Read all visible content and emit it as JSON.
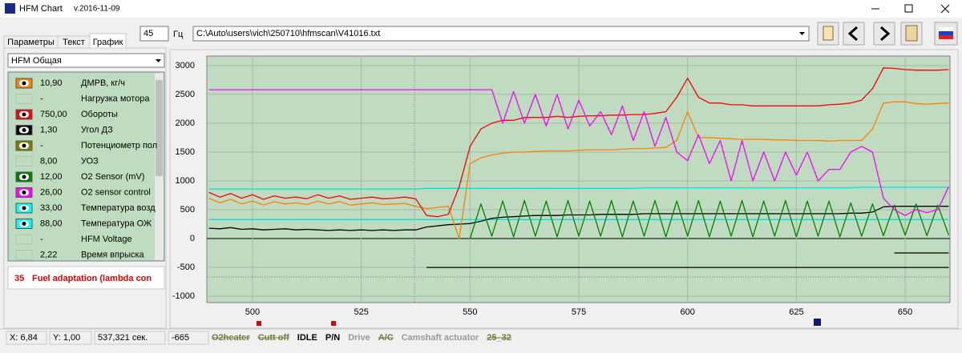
{
  "window": {
    "title": "HFM Chart",
    "version": "v.2016-11-09"
  },
  "toolbar": {
    "rate": "45",
    "rate_unit": "Гц",
    "file": "C:\\Auto\\users\\vich\\250710\\hfmscan\\V41016.txt"
  },
  "tabs": [
    "Параметры",
    "Текст",
    "График"
  ],
  "preset": "HFM Общая",
  "params": [
    {
      "value": "10,90",
      "name": "ДМРВ, кг/ч",
      "color": "#ff8000"
    },
    {
      "value": "-",
      "name": "Нагрузка мотора"
    },
    {
      "value": "750,00",
      "name": "Обороты",
      "color": "#ff0000"
    },
    {
      "value": "1,30",
      "name": "Угол ДЗ",
      "color": "#000000"
    },
    {
      "value": "-",
      "name": "Потенциометр пол",
      "color": "#808000"
    },
    {
      "value": "8,00",
      "name": "УОЗ"
    },
    {
      "value": "12,00",
      "name": "O2 Sensor (mV)",
      "color": "#008000"
    },
    {
      "value": "26,00",
      "name": "O2 sensor control",
      "color": "#ff00ff"
    },
    {
      "value": "33,00",
      "name": "Температура возд",
      "color": "#00ffff"
    },
    {
      "value": "88,00",
      "name": "Температура ОЖ",
      "color": "#00ffff"
    },
    {
      "value": "-",
      "name": "HFM Voltage"
    },
    {
      "value": "2,22",
      "name": "Время впрыска"
    }
  ],
  "message": {
    "number": "35",
    "text": "Fuel adaptation (lambda con"
  },
  "status": {
    "x": "X: 6,84",
    "y": "Y: 1,00",
    "time": "537,321 сек.",
    "cursor": "-665",
    "flags": [
      {
        "label": "O2heater",
        "state": "off"
      },
      {
        "label": "Cutt off",
        "state": "off"
      },
      {
        "label": "IDLE",
        "state": "on"
      },
      {
        "label": "P/N",
        "state": "on"
      },
      {
        "label": "Drive",
        "state": "inactive"
      },
      {
        "label": "A/C",
        "state": "off"
      },
      {
        "label": "Camshaft actuator",
        "state": "inactive"
      },
      {
        "label": "25_32",
        "state": "off"
      }
    ]
  },
  "chart_data": {
    "type": "line",
    "background": "#c0dcc0",
    "grid": true,
    "xlim": [
      489.5,
      660.3
    ],
    "ylim": [
      -1110,
      3165
    ],
    "xticks": [
      500,
      525,
      550,
      575,
      600,
      625,
      650
    ],
    "yticks": [
      3000,
      2500,
      2000,
      1500,
      1000,
      500,
      0,
      -500,
      -1000
    ],
    "x": [
      490,
      492.5,
      495,
      497.5,
      500,
      502.5,
      505,
      507.5,
      510,
      512.5,
      515,
      517.5,
      520,
      522.5,
      525,
      527.5,
      530,
      532.5,
      535,
      537.5,
      540,
      542.5,
      545,
      547.5,
      550,
      552.5,
      555,
      557.5,
      560,
      562.5,
      565,
      567.5,
      570,
      572.5,
      575,
      577.5,
      580,
      582.5,
      585,
      587.5,
      590,
      592.5,
      595,
      597.5,
      600,
      602.5,
      605,
      607.5,
      610,
      612.5,
      615,
      617.5,
      620,
      622.5,
      625,
      627.5,
      630,
      632.5,
      635,
      637.5,
      640,
      642.5,
      645,
      647.5,
      650,
      652.5,
      655,
      657.5,
      660
    ],
    "series": [
      {
        "color": "#00e0e0",
        "values": [
          860,
          860,
          860,
          860,
          860,
          860,
          860,
          860,
          860,
          860,
          860,
          860,
          860,
          860,
          860,
          860,
          860,
          860,
          860,
          860,
          870,
          870,
          870,
          870,
          870,
          870,
          870,
          870,
          870,
          870,
          870,
          870,
          870,
          870,
          870,
          870,
          870,
          870,
          870,
          870,
          880,
          880,
          880,
          880,
          880,
          880,
          880,
          880,
          880,
          880,
          880,
          880,
          880,
          880,
          880,
          880,
          880,
          880,
          880,
          880,
          890,
          890,
          890,
          890,
          890,
          890,
          890,
          890,
          890
        ]
      },
      {
        "color": "#00e0e0",
        "values": [
          330,
          330,
          330,
          330,
          330,
          330,
          330,
          330,
          330,
          330,
          330,
          330,
          330,
          330,
          330,
          330,
          330,
          330,
          330,
          330,
          330,
          330,
          330,
          330,
          330,
          330,
          330,
          330,
          330,
          330,
          330,
          330,
          330,
          330,
          330,
          330,
          330,
          330,
          330,
          330,
          330,
          330,
          330,
          330,
          330,
          330,
          330,
          330,
          330,
          330,
          330,
          330,
          330,
          330,
          330,
          330,
          330,
          330,
          330,
          330,
          330,
          330,
          330,
          330,
          330,
          330,
          330,
          330,
          330
        ]
      },
      {
        "color": "#000000",
        "values": [
          null,
          null,
          null,
          null,
          null,
          null,
          null,
          null,
          null,
          null,
          null,
          null,
          null,
          null,
          null,
          null,
          null,
          null,
          null,
          null,
          -500,
          -500,
          -500,
          -500,
          -500,
          -500,
          -500,
          -500,
          -500,
          -500,
          -500,
          -500,
          -500,
          -500,
          -500,
          -500,
          -500,
          -500,
          -500,
          -500,
          -500,
          -500,
          -500,
          -500,
          -500,
          -500,
          -500,
          -500,
          -500,
          -500,
          -500,
          -500,
          -500,
          -500,
          -500,
          -500,
          -500,
          -500,
          -500,
          -500,
          -500,
          -500,
          -500,
          -500,
          -500,
          -500,
          -500,
          -500,
          -500
        ]
      },
      {
        "color": "#000000",
        "values": [
          null,
          null,
          null,
          null,
          null,
          null,
          null,
          null,
          null,
          null,
          null,
          null,
          null,
          null,
          null,
          null,
          null,
          null,
          null,
          null,
          null,
          null,
          null,
          null,
          null,
          null,
          null,
          null,
          null,
          null,
          null,
          null,
          null,
          null,
          null,
          null,
          null,
          null,
          null,
          null,
          null,
          null,
          null,
          null,
          null,
          null,
          null,
          null,
          null,
          null,
          null,
          null,
          null,
          null,
          null,
          null,
          null,
          null,
          null,
          null,
          null,
          null,
          null,
          -250,
          -250,
          -250,
          -250,
          -250,
          -250
        ]
      },
      {
        "color": "#000000",
        "values": [
          180,
          170,
          190,
          160,
          170,
          150,
          160,
          170,
          150,
          160,
          150,
          140,
          150,
          140,
          150,
          140,
          150,
          140,
          150,
          150,
          200,
          220,
          240,
          250,
          260,
          300,
          350,
          370,
          380,
          390,
          400,
          400,
          400,
          410,
          410,
          410,
          420,
          420,
          420,
          420,
          430,
          430,
          430,
          430,
          430,
          430,
          430,
          430,
          430,
          430,
          430,
          430,
          430,
          430,
          430,
          430,
          430,
          430,
          430,
          440,
          440,
          460,
          550,
          560,
          560,
          560,
          560,
          560,
          560
        ]
      },
      {
        "color": "#008000",
        "values": [
          null,
          null,
          null,
          null,
          null,
          null,
          null,
          null,
          null,
          null,
          null,
          null,
          null,
          null,
          null,
          null,
          null,
          null,
          null,
          null,
          null,
          null,
          null,
          null,
          0,
          600,
          40,
          650,
          30,
          660,
          40,
          650,
          30,
          660,
          40,
          650,
          40,
          660,
          30,
          650,
          40,
          660,
          30,
          650,
          40,
          660,
          30,
          650,
          40,
          660,
          30,
          650,
          40,
          660,
          30,
          650,
          40,
          650,
          30,
          620,
          40,
          600,
          50,
          580,
          60,
          600,
          50,
          580,
          60
        ]
      },
      {
        "color": "#ff8000",
        "values": [
          700,
          620,
          680,
          600,
          650,
          580,
          640,
          600,
          620,
          590,
          650,
          600,
          640,
          580,
          600,
          620,
          590,
          600,
          610,
          560,
          520,
          540,
          560,
          0,
          1300,
          1400,
          1450,
          1480,
          1500,
          1500,
          1510,
          1520,
          1520,
          1520,
          1530,
          1540,
          1540,
          1540,
          1550,
          1560,
          1560,
          1570,
          1580,
          1700,
          2200,
          1750,
          1750,
          1740,
          1730,
          1720,
          1720,
          1720,
          1710,
          1710,
          1700,
          1700,
          1700,
          1690,
          1700,
          1700,
          1700,
          1900,
          2350,
          2370,
          2370,
          2340,
          2330,
          2340,
          2350
        ]
      },
      {
        "color": "#ff0000",
        "values": [
          800,
          720,
          780,
          700,
          760,
          680,
          740,
          700,
          720,
          690,
          760,
          700,
          740,
          680,
          700,
          720,
          690,
          700,
          720,
          690,
          400,
          380,
          420,
          900,
          1600,
          1900,
          2000,
          2050,
          2050,
          2100,
          2100,
          2100,
          2120,
          2100,
          2120,
          2130,
          2130,
          2140,
          2140,
          2150,
          2150,
          2170,
          2200,
          2450,
          2780,
          2450,
          2350,
          2350,
          2320,
          2320,
          2300,
          2300,
          2300,
          2300,
          2300,
          2300,
          2300,
          2320,
          2330,
          2350,
          2400,
          2600,
          2960,
          2950,
          2930,
          2920,
          2920,
          2920,
          2930
        ]
      },
      {
        "color": "#ff00ff",
        "values": [
          2580,
          2580,
          2580,
          2580,
          2580,
          2580,
          2580,
          2580,
          2580,
          2580,
          2580,
          2580,
          2580,
          2580,
          2580,
          2580,
          2580,
          2580,
          2580,
          2580,
          2580,
          2580,
          2580,
          2580,
          2580,
          2580,
          2580,
          2000,
          2550,
          2000,
          2500,
          1950,
          2500,
          1900,
          2400,
          1950,
          2200,
          1800,
          2300,
          1700,
          2200,
          1600,
          2100,
          1500,
          1350,
          1800,
          1300,
          1700,
          1000,
          1700,
          1000,
          1500,
          1000,
          1500,
          1100,
          1500,
          1000,
          1200,
          1200,
          1500,
          1600,
          1500,
          700,
          500,
          400,
          500,
          450,
          500,
          900
        ]
      }
    ]
  }
}
